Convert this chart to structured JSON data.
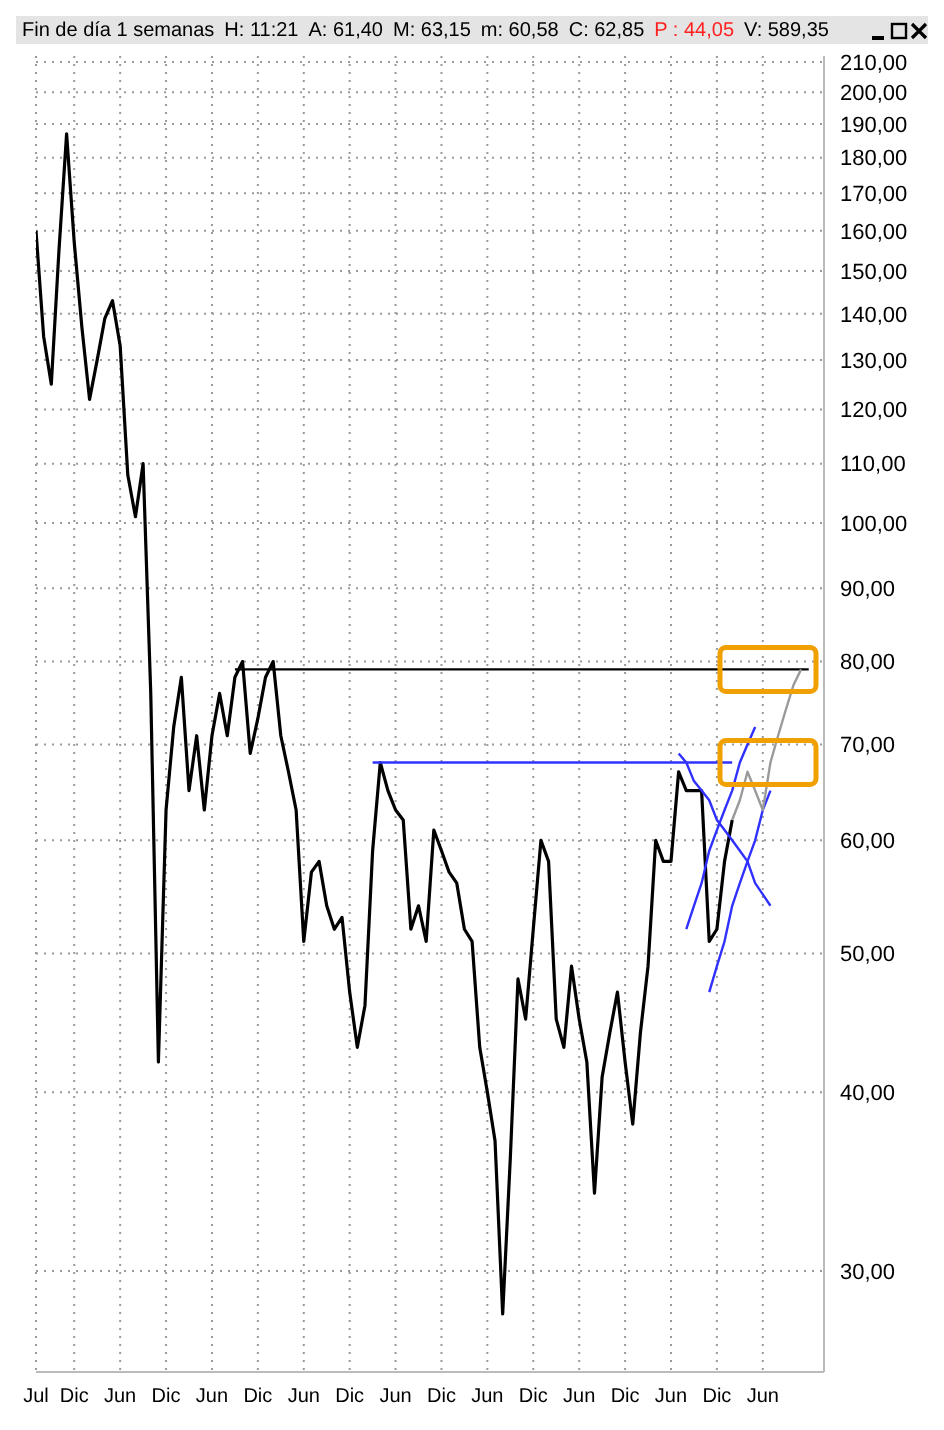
{
  "chart_data": {
    "type": "line",
    "title": "Fin de día 1 semanas",
    "annotations": [
      "H: 11:21",
      "A: 61,40",
      "M: 63,15",
      "m: 60,58",
      "C: 62,85",
      "P : 44,05",
      "V: 589,35"
    ],
    "categories": [
      "Jul",
      null,
      null,
      null,
      null,
      "Dic",
      null,
      null,
      null,
      null,
      null,
      "Jun",
      null,
      null,
      null,
      null,
      null,
      "Dic",
      null,
      null,
      null,
      null,
      null,
      "Jun",
      null,
      null,
      null,
      null,
      null,
      "Dic",
      null,
      null,
      null,
      null,
      null,
      "Jun",
      null,
      null,
      null,
      null,
      null,
      "Dic",
      null,
      null,
      null,
      null,
      null,
      "Jun",
      null,
      null,
      null,
      null,
      null,
      "Dic",
      null,
      null,
      null,
      null,
      null,
      "Jun",
      null,
      null,
      null,
      null,
      null,
      "Dic",
      null,
      null,
      null,
      null,
      null,
      "Jun",
      null,
      null,
      null,
      null,
      null,
      "Dic",
      null,
      null,
      null,
      null,
      null,
      "Jun",
      null,
      null,
      null,
      null,
      null,
      "Dic",
      null,
      null,
      null,
      null,
      null,
      "Jun",
      null,
      null,
      null,
      null,
      null,
      null,
      null,
      null
    ],
    "ylim": [
      25.5,
      212
    ],
    "log": "y",
    "grid": true,
    "yticks": [
      {
        "value": 30,
        "label": "30,00"
      },
      {
        "value": 40,
        "label": "40,00"
      },
      {
        "value": 50,
        "label": "50,00"
      },
      {
        "value": 60,
        "label": "60,00"
      },
      {
        "value": 70,
        "label": "70,00"
      },
      {
        "value": 80,
        "label": "80,00"
      },
      {
        "value": 90,
        "label": "90,00"
      },
      {
        "value": 100,
        "label": "100,00"
      },
      {
        "value": 110,
        "label": "110,00"
      },
      {
        "value": 120,
        "label": "120,00"
      },
      {
        "value": 130,
        "label": "130,00"
      },
      {
        "value": 140,
        "label": "140,00"
      },
      {
        "value": 150,
        "label": "150,00"
      },
      {
        "value": 160,
        "label": "160,00"
      },
      {
        "value": 170,
        "label": "170,00"
      },
      {
        "value": 180,
        "label": "180,00"
      },
      {
        "value": 190,
        "label": "190,00"
      },
      {
        "value": 200,
        "label": "200,00"
      },
      {
        "value": 210,
        "label": "210,00"
      }
    ],
    "series": [
      {
        "color": "#000000",
        "values": [
          160,
          135,
          125,
          155,
          187,
          157,
          137,
          122,
          130,
          139,
          143,
          133,
          108,
          101,
          110,
          76,
          42,
          63,
          72,
          78,
          65,
          71,
          63,
          71,
          76,
          71,
          78,
          80,
          69,
          73,
          78,
          80,
          71,
          67,
          63,
          51,
          57,
          58,
          54,
          52,
          53,
          47,
          43,
          46,
          59,
          68,
          65,
          63,
          62,
          52,
          54,
          51,
          61,
          59,
          57,
          56,
          52,
          51,
          43,
          40,
          37,
          28,
          36,
          48,
          45,
          52,
          60,
          58,
          45,
          43,
          49,
          45,
          42,
          34,
          41,
          44,
          47,
          42,
          38,
          44,
          49,
          60,
          58,
          58,
          67,
          65,
          65,
          65,
          51,
          52,
          58,
          62,
          null,
          null,
          null,
          null,
          null,
          null,
          null,
          null,
          null,
          null,
          null,
          null
        ]
      },
      {
        "color": "#000000",
        "values": [
          null,
          null,
          null,
          null,
          null,
          null,
          null,
          null,
          null,
          null,
          null,
          null,
          null,
          null,
          null,
          null,
          null,
          null,
          null,
          null,
          null,
          null,
          null,
          null,
          null,
          null,
          79,
          79,
          79,
          79,
          79,
          79,
          79,
          79,
          79,
          79,
          79,
          79,
          79,
          79,
          79,
          79,
          79,
          79,
          79,
          79,
          79,
          79,
          79,
          79,
          79,
          79,
          79,
          79,
          79,
          79,
          79,
          79,
          79,
          79,
          79,
          79,
          79,
          79,
          79,
          79,
          79,
          79,
          79,
          79,
          79,
          79,
          79,
          79,
          79,
          79,
          79,
          79,
          79,
          79,
          79,
          79,
          79,
          79,
          79,
          79,
          79,
          79,
          79,
          79,
          79,
          79,
          79,
          79,
          79,
          79,
          79,
          79,
          79,
          79,
          79,
          79,
          null,
          null
        ]
      },
      {
        "color": "#3030ff",
        "values": [
          null,
          null,
          null,
          null,
          null,
          null,
          null,
          null,
          null,
          null,
          null,
          null,
          null,
          null,
          null,
          null,
          null,
          null,
          null,
          null,
          null,
          null,
          null,
          null,
          null,
          null,
          null,
          null,
          null,
          null,
          null,
          null,
          null,
          null,
          null,
          null,
          null,
          null,
          null,
          null,
          null,
          null,
          null,
          null,
          68,
          68,
          68,
          68,
          68,
          68,
          68,
          68,
          68,
          68,
          68,
          68,
          68,
          68,
          68,
          68,
          68,
          68,
          68,
          68,
          68,
          68,
          68,
          68,
          68,
          68,
          68,
          68,
          68,
          68,
          68,
          68,
          68,
          68,
          68,
          68,
          68,
          68,
          68,
          68,
          68,
          68,
          68,
          68,
          68,
          68,
          68,
          68,
          null,
          null,
          null,
          null,
          null,
          null,
          null,
          null,
          null,
          null,
          null,
          null
        ]
      },
      {
        "color": "#3030ff",
        "values": [
          null,
          null,
          null,
          null,
          null,
          null,
          null,
          null,
          null,
          null,
          null,
          null,
          null,
          null,
          null,
          null,
          null,
          null,
          null,
          null,
          null,
          null,
          null,
          null,
          null,
          null,
          null,
          null,
          null,
          null,
          null,
          null,
          null,
          null,
          null,
          null,
          null,
          null,
          null,
          null,
          null,
          null,
          null,
          null,
          null,
          null,
          null,
          null,
          null,
          null,
          null,
          null,
          null,
          null,
          null,
          null,
          null,
          null,
          null,
          null,
          null,
          null,
          null,
          null,
          null,
          null,
          null,
          null,
          null,
          null,
          null,
          null,
          null,
          null,
          null,
          null,
          null,
          null,
          null,
          null,
          null,
          null,
          null,
          null,
          69,
          68,
          66,
          65,
          64,
          62,
          61,
          60,
          59,
          58,
          56,
          55,
          54,
          null,
          null,
          null,
          null,
          null,
          null,
          null
        ]
      },
      {
        "color": "#3030ff",
        "values": [
          null,
          null,
          null,
          null,
          null,
          null,
          null,
          null,
          null,
          null,
          null,
          null,
          null,
          null,
          null,
          null,
          null,
          null,
          null,
          null,
          null,
          null,
          null,
          null,
          null,
          null,
          null,
          null,
          null,
          null,
          null,
          null,
          null,
          null,
          null,
          null,
          null,
          null,
          null,
          null,
          null,
          null,
          null,
          null,
          null,
          null,
          null,
          null,
          null,
          null,
          null,
          null,
          null,
          null,
          null,
          null,
          null,
          null,
          null,
          null,
          null,
          null,
          null,
          null,
          null,
          null,
          null,
          null,
          null,
          null,
          null,
          null,
          null,
          null,
          null,
          null,
          null,
          null,
          null,
          null,
          null,
          null,
          null,
          null,
          null,
          52,
          54,
          56,
          59,
          61,
          63,
          65,
          68,
          70,
          72,
          null,
          null,
          null,
          null,
          null,
          null,
          null,
          null,
          null
        ]
      },
      {
        "color": "#3030ff",
        "values": [
          null,
          null,
          null,
          null,
          null,
          null,
          null,
          null,
          null,
          null,
          null,
          null,
          null,
          null,
          null,
          null,
          null,
          null,
          null,
          null,
          null,
          null,
          null,
          null,
          null,
          null,
          null,
          null,
          null,
          null,
          null,
          null,
          null,
          null,
          null,
          null,
          null,
          null,
          null,
          null,
          null,
          null,
          null,
          null,
          null,
          null,
          null,
          null,
          null,
          null,
          null,
          null,
          null,
          null,
          null,
          null,
          null,
          null,
          null,
          null,
          null,
          null,
          null,
          null,
          null,
          null,
          null,
          null,
          null,
          null,
          null,
          null,
          null,
          null,
          null,
          null,
          null,
          null,
          null,
          null,
          null,
          null,
          null,
          null,
          null,
          null,
          null,
          null,
          47,
          49,
          51,
          54,
          56,
          58,
          60,
          63,
          65,
          null,
          null,
          null,
          null,
          null,
          null,
          null
        ]
      },
      {
        "color": "#9a9a9a",
        "values": [
          null,
          null,
          null,
          null,
          null,
          null,
          null,
          null,
          null,
          null,
          null,
          null,
          null,
          null,
          null,
          null,
          null,
          null,
          null,
          null,
          null,
          null,
          null,
          null,
          null,
          null,
          null,
          null,
          null,
          null,
          null,
          null,
          null,
          null,
          null,
          null,
          null,
          null,
          null,
          null,
          null,
          null,
          null,
          null,
          null,
          null,
          null,
          null,
          null,
          null,
          null,
          null,
          null,
          null,
          null,
          null,
          null,
          null,
          null,
          null,
          null,
          null,
          null,
          null,
          null,
          null,
          null,
          null,
          null,
          null,
          null,
          null,
          null,
          null,
          null,
          null,
          null,
          null,
          null,
          null,
          null,
          null,
          null,
          null,
          null,
          null,
          null,
          null,
          null,
          null,
          null,
          62,
          64,
          67,
          65,
          63,
          68,
          71,
          74,
          77,
          79,
          null,
          null,
          null
        ]
      }
    ]
  }
}
